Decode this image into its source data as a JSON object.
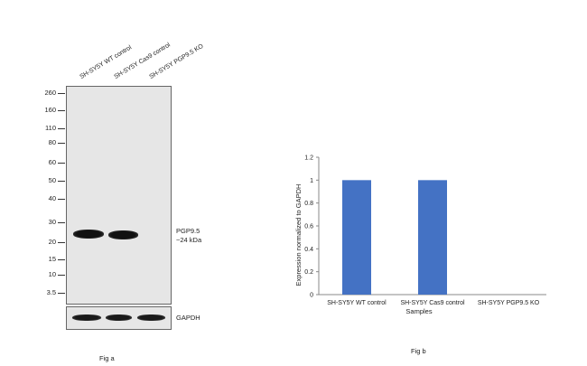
{
  "fig_a": {
    "caption": "Fig a",
    "lane_labels": [
      "SH-SY5Y WT control",
      "SH-SY5Y Cas9 control",
      "SH-SY5Y PGP9.5 KO"
    ],
    "markers": [
      "260",
      "160",
      "110",
      "80",
      "60",
      "50",
      "40",
      "30",
      "20",
      "15",
      "10",
      "3.5"
    ],
    "target_label": "PGP9.5",
    "target_size": "~24 kDa",
    "loading_control_label": "GAPDH"
  },
  "fig_b": {
    "caption": "Fig b"
  },
  "chart_data": {
    "type": "bar",
    "categories": [
      "SH-SY5Y WT control",
      "SH-SY5Y Cas9 control",
      "SH-SY5Y PGP9.5 KO"
    ],
    "values": [
      1,
      1,
      0
    ],
    "xlabel": "Samples",
    "ylabel": "Expression normalized to GAPDH",
    "ylim": [
      0,
      1.2
    ],
    "yticks": [
      "0",
      "0.2",
      "0.4",
      "0.6",
      "0.8",
      "1",
      "1.2"
    ],
    "bar_color": "#4472c4",
    "grid": false,
    "legend": "none"
  }
}
